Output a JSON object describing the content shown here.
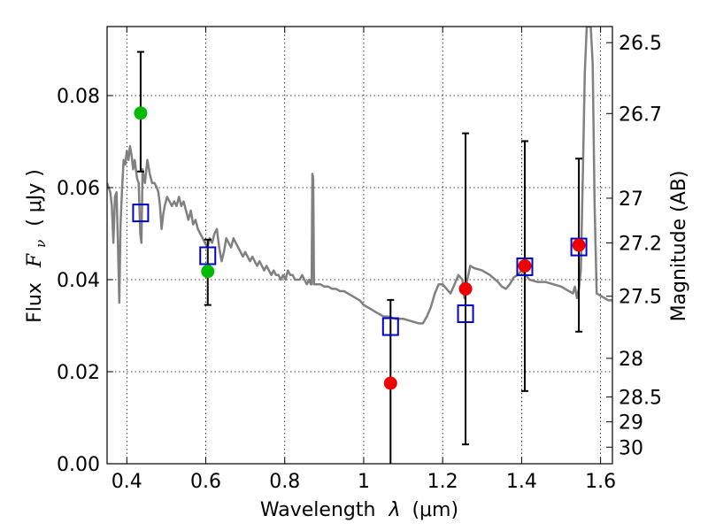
{
  "chart_data": {
    "type": "scatter",
    "xlabel": "Wavelength",
    "xlabel_symbol": "λ",
    "xlabel_unit": "(μm)",
    "ylabel": "Flux",
    "ylabel_symbol": "F",
    "ylabel_subscript": "ν",
    "ylabel_unit": "( μJy )",
    "y2label": "Magnitude (AB)",
    "xlim": [
      0.35,
      1.63
    ],
    "ylim": [
      0.0,
      0.095
    ],
    "grid": true,
    "x_ticks": [
      0.4,
      0.6,
      0.8,
      1.0,
      1.2,
      1.4,
      1.6
    ],
    "x_tick_labels": [
      "0.4",
      "0.6",
      "0.8",
      "1",
      "1.2",
      "1.4",
      "1.6"
    ],
    "y_ticks": [
      0.0,
      0.02,
      0.04,
      0.06,
      0.08
    ],
    "y_tick_labels": [
      "0.00",
      "0.02",
      "0.04",
      "0.06",
      "0.08"
    ],
    "mag_ticks": [
      {
        "label": "26.5",
        "flux": 0.0915
      },
      {
        "label": "26.7",
        "flux": 0.0761
      },
      {
        "label": "27",
        "flux": 0.0577
      },
      {
        "label": "27.2",
        "flux": 0.048
      },
      {
        "label": "27.5",
        "flux": 0.0364
      },
      {
        "label": "28",
        "flux": 0.0229
      },
      {
        "label": "28.5",
        "flux": 0.0145
      },
      {
        "label": "29",
        "flux": 0.0091
      },
      {
        "label": "30",
        "flux": 0.0036
      }
    ],
    "series": [
      {
        "kind": "line",
        "color": "#808080",
        "points": [
          [
            0.35,
            0.061
          ],
          [
            0.358,
            0.059
          ],
          [
            0.362,
            0.056
          ],
          [
            0.366,
            0.048
          ],
          [
            0.37,
            0.058
          ],
          [
            0.374,
            0.059
          ],
          [
            0.378,
            0.046
          ],
          [
            0.381,
            0.035
          ],
          [
            0.384,
            0.052
          ],
          [
            0.388,
            0.06
          ],
          [
            0.392,
            0.066
          ],
          [
            0.396,
            0.065
          ],
          [
            0.4,
            0.068
          ],
          [
            0.404,
            0.066
          ],
          [
            0.408,
            0.069
          ],
          [
            0.412,
            0.067
          ],
          [
            0.416,
            0.064
          ],
          [
            0.42,
            0.066
          ],
          [
            0.426,
            0.062
          ],
          [
            0.43,
            0.061
          ],
          [
            0.434,
            0.05
          ],
          [
            0.437,
            0.048
          ],
          [
            0.44,
            0.064
          ],
          [
            0.446,
            0.061
          ],
          [
            0.452,
            0.066
          ],
          [
            0.458,
            0.063
          ],
          [
            0.464,
            0.061
          ],
          [
            0.47,
            0.061
          ],
          [
            0.476,
            0.06
          ],
          [
            0.48,
            0.059
          ],
          [
            0.484,
            0.056
          ],
          [
            0.488,
            0.051
          ],
          [
            0.492,
            0.054
          ],
          [
            0.496,
            0.056
          ],
          [
            0.502,
            0.058
          ],
          [
            0.508,
            0.057
          ],
          [
            0.514,
            0.056
          ],
          [
            0.52,
            0.057
          ],
          [
            0.526,
            0.056
          ],
          [
            0.532,
            0.058
          ],
          [
            0.538,
            0.056
          ],
          [
            0.544,
            0.057
          ],
          [
            0.55,
            0.055
          ],
          [
            0.556,
            0.053
          ],
          [
            0.562,
            0.055
          ],
          [
            0.568,
            0.052
          ],
          [
            0.574,
            0.053
          ],
          [
            0.58,
            0.051
          ],
          [
            0.586,
            0.05
          ],
          [
            0.592,
            0.049
          ],
          [
            0.598,
            0.048
          ],
          [
            0.604,
            0.047
          ],
          [
            0.61,
            0.049
          ],
          [
            0.616,
            0.048
          ],
          [
            0.622,
            0.05
          ],
          [
            0.628,
            0.051
          ],
          [
            0.634,
            0.047
          ],
          [
            0.64,
            0.044
          ],
          [
            0.646,
            0.046
          ],
          [
            0.652,
            0.049
          ],
          [
            0.658,
            0.048
          ],
          [
            0.664,
            0.047
          ],
          [
            0.67,
            0.049
          ],
          [
            0.676,
            0.048
          ],
          [
            0.682,
            0.047
          ],
          [
            0.688,
            0.046
          ],
          [
            0.694,
            0.045
          ],
          [
            0.7,
            0.046
          ],
          [
            0.706,
            0.045
          ],
          [
            0.712,
            0.044
          ],
          [
            0.718,
            0.045
          ],
          [
            0.724,
            0.044
          ],
          [
            0.73,
            0.043
          ],
          [
            0.736,
            0.044
          ],
          [
            0.742,
            0.043
          ],
          [
            0.748,
            0.042
          ],
          [
            0.754,
            0.043
          ],
          [
            0.76,
            0.042
          ],
          [
            0.766,
            0.041
          ],
          [
            0.772,
            0.042
          ],
          [
            0.778,
            0.041
          ],
          [
            0.784,
            0.041
          ],
          [
            0.79,
            0.04
          ],
          [
            0.796,
            0.041
          ],
          [
            0.802,
            0.04
          ],
          [
            0.808,
            0.042
          ],
          [
            0.814,
            0.041
          ],
          [
            0.82,
            0.041
          ],
          [
            0.826,
            0.04
          ],
          [
            0.832,
            0.04
          ],
          [
            0.838,
            0.04
          ],
          [
            0.844,
            0.041
          ],
          [
            0.85,
            0.04
          ],
          [
            0.856,
            0.039
          ],
          [
            0.862,
            0.04
          ],
          [
            0.866,
            0.039
          ],
          [
            0.868,
            0.039
          ],
          [
            0.87,
            0.063
          ],
          [
            0.872,
            0.062
          ],
          [
            0.874,
            0.039
          ],
          [
            0.88,
            0.039
          ],
          [
            0.89,
            0.039
          ],
          [
            0.9,
            0.0385
          ],
          [
            0.91,
            0.0385
          ],
          [
            0.92,
            0.038
          ],
          [
            0.93,
            0.038
          ],
          [
            0.94,
            0.0375
          ],
          [
            0.95,
            0.0375
          ],
          [
            0.96,
            0.037
          ],
          [
            0.97,
            0.0365
          ],
          [
            0.98,
            0.036
          ],
          [
            0.99,
            0.0355
          ],
          [
            1.0,
            0.0345
          ],
          [
            1.01,
            0.034
          ],
          [
            1.02,
            0.0335
          ],
          [
            1.03,
            0.033
          ],
          [
            1.04,
            0.0325
          ],
          [
            1.05,
            0.032
          ],
          [
            1.06,
            0.032
          ],
          [
            1.08,
            0.0315
          ],
          [
            1.1,
            0.0315
          ],
          [
            1.12,
            0.031
          ],
          [
            1.14,
            0.0305
          ],
          [
            1.15,
            0.0305
          ],
          [
            1.16,
            0.032
          ],
          [
            1.17,
            0.034
          ],
          [
            1.18,
            0.037
          ],
          [
            1.19,
            0.039
          ],
          [
            1.2,
            0.039
          ],
          [
            1.21,
            0.038
          ],
          [
            1.22,
            0.037
          ],
          [
            1.23,
            0.039
          ],
          [
            1.24,
            0.041
          ],
          [
            1.25,
            0.04
          ],
          [
            1.255,
            0.036
          ],
          [
            1.26,
            0.039
          ],
          [
            1.27,
            0.043
          ],
          [
            1.28,
            0.0425
          ],
          [
            1.3,
            0.042
          ],
          [
            1.32,
            0.041
          ],
          [
            1.34,
            0.0395
          ],
          [
            1.35,
            0.0385
          ],
          [
            1.36,
            0.038
          ],
          [
            1.37,
            0.039
          ],
          [
            1.38,
            0.0405
          ],
          [
            1.39,
            0.041
          ],
          [
            1.4,
            0.042
          ],
          [
            1.41,
            0.041
          ],
          [
            1.42,
            0.04
          ],
          [
            1.44,
            0.0395
          ],
          [
            1.46,
            0.0395
          ],
          [
            1.48,
            0.039
          ],
          [
            1.5,
            0.0385
          ],
          [
            1.51,
            0.038
          ],
          [
            1.52,
            0.0375
          ],
          [
            1.53,
            0.037
          ],
          [
            1.535,
            0.0385
          ],
          [
            1.54,
            0.036
          ],
          [
            1.545,
            0.038
          ],
          [
            1.55,
            0.042
          ],
          [
            1.555,
            0.062
          ],
          [
            1.56,
            0.085
          ],
          [
            1.565,
            0.095
          ],
          [
            1.57,
            0.095
          ],
          [
            1.575,
            0.095
          ],
          [
            1.58,
            0.087
          ],
          [
            1.585,
            0.056
          ],
          [
            1.59,
            0.037
          ],
          [
            1.6,
            0.0365
          ],
          [
            1.61,
            0.036
          ],
          [
            1.62,
            0.0355
          ],
          [
            1.63,
            0.0355
          ]
        ]
      },
      {
        "kind": "errorbar",
        "color": "#000000",
        "points": [
          {
            "x": 0.435,
            "lo": 0.0635,
            "hi": 0.0895
          },
          {
            "x": 0.605,
            "lo": 0.0345,
            "hi": 0.0487
          },
          {
            "x": 1.068,
            "lo": 0.0,
            "hi": 0.0356
          },
          {
            "x": 1.258,
            "lo": 0.0042,
            "hi": 0.0718
          },
          {
            "x": 1.408,
            "lo": 0.0158,
            "hi": 0.0701
          },
          {
            "x": 1.545,
            "lo": 0.0287,
            "hi": 0.0663
          }
        ]
      },
      {
        "kind": "open-square",
        "color": "#0000cc",
        "points": [
          [
            0.435,
            0.0545
          ],
          [
            0.605,
            0.0452
          ],
          [
            1.068,
            0.0298
          ],
          [
            1.258,
            0.0326
          ],
          [
            1.408,
            0.0428
          ],
          [
            1.545,
            0.0471
          ]
        ]
      },
      {
        "kind": "circle",
        "color": "#00bb00",
        "points": [
          [
            0.435,
            0.0762
          ],
          [
            0.605,
            0.0418
          ]
        ]
      },
      {
        "kind": "circle",
        "color": "#ee0000",
        "points": [
          [
            1.068,
            0.0175
          ],
          [
            1.258,
            0.038
          ],
          [
            1.408,
            0.043
          ],
          [
            1.545,
            0.0475
          ]
        ]
      }
    ]
  }
}
